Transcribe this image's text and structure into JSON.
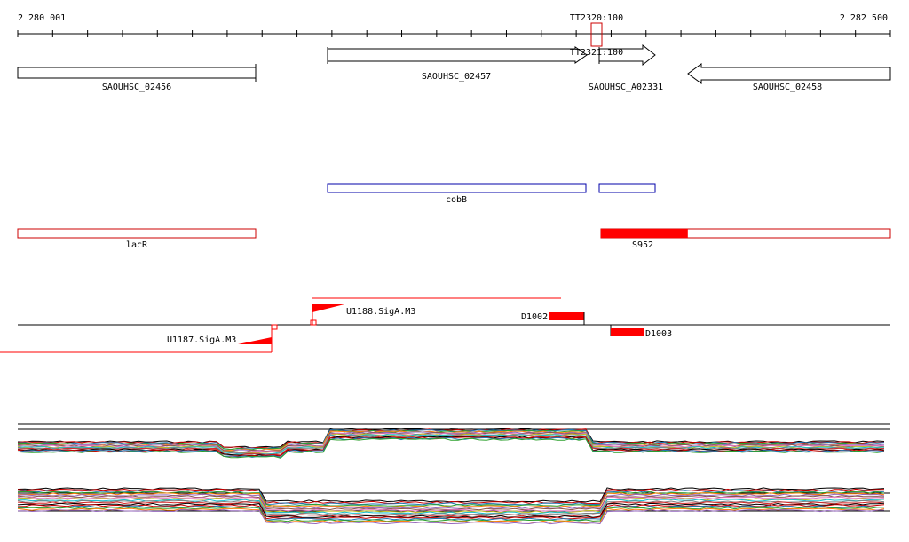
{
  "ruler": {
    "start_label": "2 280 001",
    "end_label": "2 282 500",
    "marker_label": "TT2320:100"
  },
  "genes": [
    {
      "id": "gene-saouhsc-02456",
      "label": "SAOUHSC_02456",
      "strand": "none"
    },
    {
      "id": "gene-saouhsc-02457",
      "label": "SAOUHSC_02457",
      "strand": "forward"
    },
    {
      "id": "gene-saouhsc-a02331",
      "label": "SAOUHSC_A02331",
      "strand": "forward"
    },
    {
      "id": "gene-saouhsc-02458",
      "label": "SAOUHSC_02458",
      "strand": "reverse"
    }
  ],
  "tss_label": "TT2321:100",
  "operons": [
    {
      "label": "cobB"
    },
    {
      "label": ""
    }
  ],
  "features": [
    {
      "label": "lacR",
      "expression": 0
    },
    {
      "label": "S952",
      "expression": 0.3
    }
  ],
  "promoters": [
    {
      "label": "U1188.SigA.M3"
    },
    {
      "label": "U1187.SigA.M3"
    }
  ],
  "terminators": [
    {
      "label": "D1002"
    },
    {
      "label": "D1003"
    }
  ],
  "track_colors": [
    "#000000",
    "#cc0000",
    "#1f77b4",
    "#2ca02c",
    "#ff7f0e",
    "#9467bd",
    "#8c564b",
    "#e377c2",
    "#bcbd22",
    "#17becf",
    "#7f7f7f",
    "#d62728"
  ],
  "colors": {
    "gene": "#000000",
    "operon": "#0000aa",
    "feature": "#cc0000",
    "feature_fill": "#ff0000",
    "promoter": "#ff0000"
  }
}
